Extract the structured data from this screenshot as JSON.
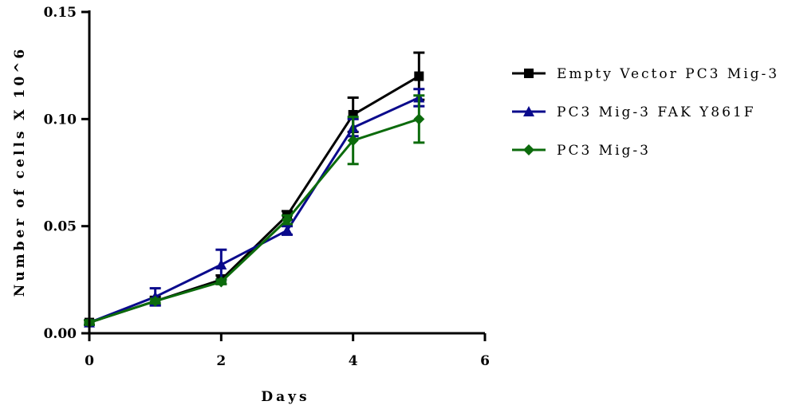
{
  "chart_data": {
    "type": "line",
    "xlabel": "Days",
    "ylabel": "Number of cells X 10^6",
    "xlim": [
      0,
      6
    ],
    "ylim": [
      0,
      0.15
    ],
    "xticks": [
      "0",
      "2",
      "4",
      "6"
    ],
    "yticks": [
      "0.00",
      "0.05",
      "0.10",
      "0.15"
    ],
    "grid": false,
    "legend_position": "right",
    "series": [
      {
        "name": "Empty Vector PC3 Mig-3",
        "color": "#000000",
        "marker": "square",
        "x": [
          0,
          1,
          2,
          3,
          4,
          5
        ],
        "y": [
          0.005,
          0.015,
          0.025,
          0.055,
          0.102,
          0.12
        ],
        "err": [
          0.001,
          0.002,
          0.002,
          0.002,
          0.008,
          0.011
        ]
      },
      {
        "name": "PC3 Mig-3 FAK Y861F",
        "color": "#0a0a8c",
        "marker": "triangle",
        "x": [
          0,
          1,
          2,
          3,
          4,
          5
        ],
        "y": [
          0.005,
          0.017,
          0.032,
          0.048,
          0.096,
          0.11
        ],
        "err": [
          0.001,
          0.004,
          0.007,
          0.002,
          0.004,
          0.004
        ]
      },
      {
        "name": "PC3 Mig-3",
        "color": "#0c6b0c",
        "marker": "diamond",
        "x": [
          0,
          1,
          2,
          3,
          4,
          5
        ],
        "y": [
          0.005,
          0.015,
          0.024,
          0.053,
          0.09,
          0.1
        ],
        "err": [
          0.001,
          0.001,
          0.001,
          0.002,
          0.011,
          0.011
        ]
      }
    ]
  }
}
